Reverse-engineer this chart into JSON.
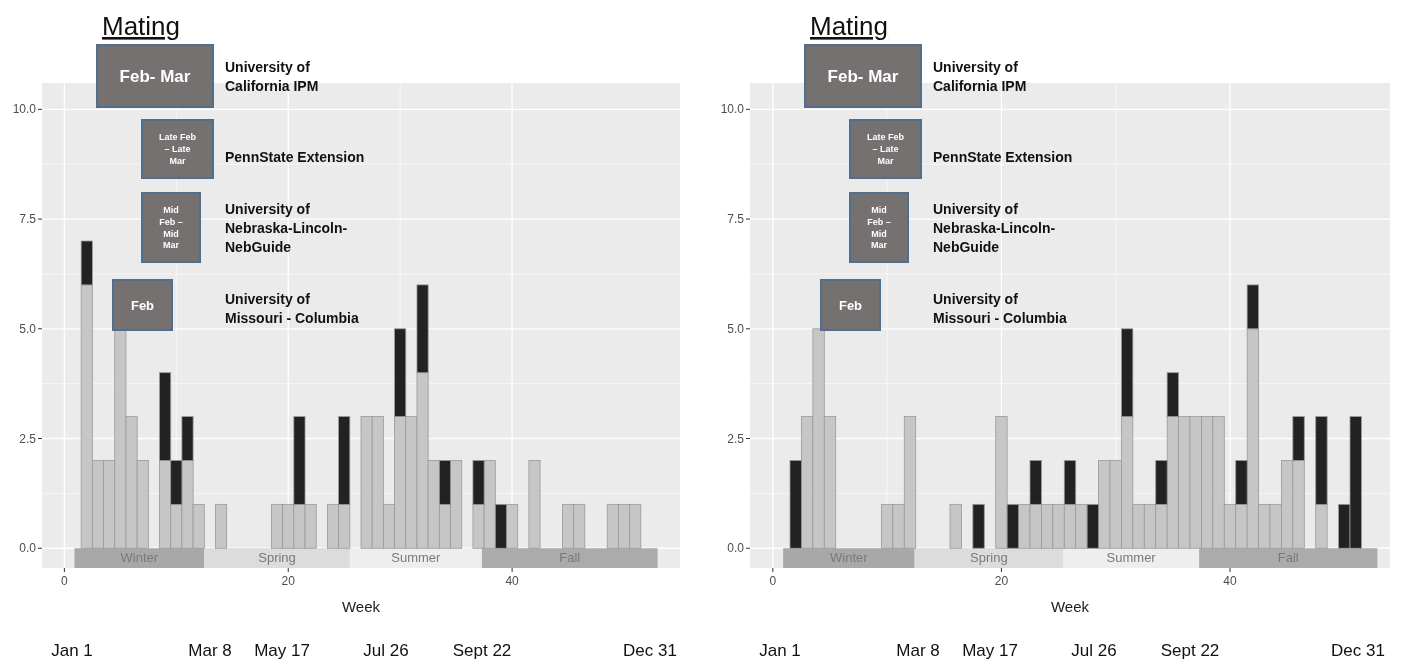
{
  "chart_data": [
    {
      "type": "bar",
      "title": "Mating",
      "xlabel": "Week",
      "stacked": true,
      "grid": true,
      "x": [
        1,
        2,
        3,
        4,
        5,
        6,
        7,
        8,
        9,
        10,
        11,
        12,
        13,
        14,
        15,
        16,
        17,
        18,
        19,
        20,
        21,
        22,
        23,
        24,
        25,
        26,
        27,
        28,
        29,
        30,
        31,
        32,
        33,
        34,
        35,
        36,
        37,
        38,
        39,
        40,
        41,
        42,
        43,
        44,
        45,
        46,
        47,
        48,
        49,
        50,
        51,
        52
      ],
      "series": [
        {
          "color": "#c6c6c6",
          "values": [
            0,
            6,
            2,
            2,
            5,
            3,
            2,
            0,
            2,
            1,
            2,
            1,
            0,
            1,
            0,
            0,
            0,
            0,
            1,
            1,
            1,
            1,
            0,
            1,
            1,
            0,
            3,
            3,
            1,
            3,
            3,
            4,
            2,
            1,
            2,
            0,
            1,
            2,
            0,
            1,
            0,
            2,
            0,
            0,
            1,
            1,
            0,
            0,
            1,
            1,
            1,
            0
          ]
        },
        {
          "color": "#222222",
          "values": [
            0,
            1,
            0,
            0,
            0,
            0,
            0,
            0,
            2,
            1,
            1,
            0,
            0,
            0,
            0,
            0,
            0,
            0,
            0,
            0,
            2,
            0,
            0,
            0,
            2,
            0,
            0,
            0,
            0,
            2,
            0,
            2,
            0,
            1,
            0,
            0,
            1,
            0,
            1,
            0,
            0,
            0,
            0,
            0,
            0,
            0,
            0,
            0,
            0,
            0,
            0,
            0
          ]
        }
      ],
      "xlim": [
        -2,
        55
      ],
      "ylim": [
        -0.45,
        10.6
      ],
      "xticks": [
        0,
        20,
        40
      ],
      "yticks": [
        {
          "value": 0,
          "label": "0.0"
        },
        {
          "value": 2.5,
          "label": "2.5"
        },
        {
          "value": 5,
          "label": "5.0"
        },
        {
          "value": 7.5,
          "label": "7.5"
        },
        {
          "value": 10,
          "label": "10.0"
        }
      ],
      "bands": [
        {
          "axis": "x",
          "from": 0.9,
          "to": 12.5,
          "label": "Winter",
          "color": "#a8a8a8"
        },
        {
          "axis": "x",
          "from": 12.5,
          "to": 25.5,
          "label": "Spring",
          "color": "#dcdcdc"
        },
        {
          "axis": "x",
          "from": 25.5,
          "to": 37.3,
          "label": "Summer",
          "color": "#eeeeee"
        },
        {
          "axis": "x",
          "from": 37.3,
          "to": 53,
          "label": "Fall",
          "color": "#ababab"
        }
      ],
      "annotations": [
        "Feb- Mar",
        "University of California IPM",
        "Late Feb – Late Mar",
        "PennState Extension",
        "Mid Feb – Mid Mar",
        "University of Nebraska-Lincoln-NebGuide",
        "Feb",
        "University of Missouri - Columbia",
        "Jan 1",
        "Mar 8",
        "May 17",
        "Jul 26",
        "Sept 22",
        "Dec 31"
      ]
    },
    {
      "type": "bar",
      "title": "Mating",
      "xlabel": "Week",
      "stacked": true,
      "grid": true,
      "x": [
        1,
        2,
        3,
        4,
        5,
        6,
        7,
        8,
        9,
        10,
        11,
        12,
        13,
        14,
        15,
        16,
        17,
        18,
        19,
        20,
        21,
        22,
        23,
        24,
        25,
        26,
        27,
        28,
        29,
        30,
        31,
        32,
        33,
        34,
        35,
        36,
        37,
        38,
        39,
        40,
        41,
        42,
        43,
        44,
        45,
        46,
        47,
        48,
        49,
        50,
        51,
        52
      ],
      "series": [
        {
          "color": "#c6c6c6",
          "values": [
            0,
            0,
            3,
            5,
            3,
            0,
            0,
            0,
            0,
            1,
            1,
            3,
            0,
            0,
            0,
            1,
            0,
            0,
            0,
            3,
            0,
            1,
            1,
            1,
            1,
            1,
            1,
            0,
            2,
            2,
            3,
            1,
            1,
            1,
            3,
            3,
            3,
            3,
            3,
            1,
            1,
            5,
            1,
            1,
            2,
            2,
            0,
            1,
            0,
            0,
            0,
            0
          ]
        },
        {
          "color": "#222222",
          "values": [
            0,
            2,
            0,
            0,
            0,
            0,
            0,
            0,
            0,
            0,
            0,
            0,
            0,
            0,
            0,
            0,
            0,
            1,
            0,
            0,
            1,
            0,
            1,
            0,
            0,
            1,
            0,
            1,
            0,
            0,
            2,
            0,
            0,
            1,
            1,
            0,
            0,
            0,
            0,
            0,
            1,
            1,
            0,
            0,
            0,
            1,
            0,
            2,
            0,
            1,
            3,
            0
          ]
        }
      ],
      "xlim": [
        -2,
        54
      ],
      "ylim": [
        -0.45,
        10.6
      ],
      "xticks": [
        0,
        20,
        40
      ],
      "yticks": [
        {
          "value": 0,
          "label": "0.0"
        },
        {
          "value": 2.5,
          "label": "2.5"
        },
        {
          "value": 5,
          "label": "5.0"
        },
        {
          "value": 7.5,
          "label": "7.5"
        },
        {
          "value": 10,
          "label": "10.0"
        }
      ],
      "bands": [
        {
          "axis": "x",
          "from": 0.9,
          "to": 12.4,
          "label": "Winter",
          "color": "#a8a8a8"
        },
        {
          "axis": "x",
          "from": 12.4,
          "to": 25.4,
          "label": "Spring",
          "color": "#dcdcdc"
        },
        {
          "axis": "x",
          "from": 25.4,
          "to": 37.3,
          "label": "Summer",
          "color": "#eeeeee"
        },
        {
          "axis": "x",
          "from": 37.3,
          "to": 52.9,
          "label": "Fall",
          "color": "#ababab"
        }
      ],
      "annotations": [
        "Feb- Mar",
        "University of California IPM",
        "Late Feb – Late Mar",
        "PennState Extension",
        "Mid Feb – Mid Mar",
        "University of Nebraska-Lincoln-NebGuide",
        "Feb",
        "University of Missouri - Columbia",
        "Jan 1",
        "Mar 8",
        "May 17",
        "Jul 26",
        "Sept 22",
        "Dec 31"
      ]
    }
  ]
}
